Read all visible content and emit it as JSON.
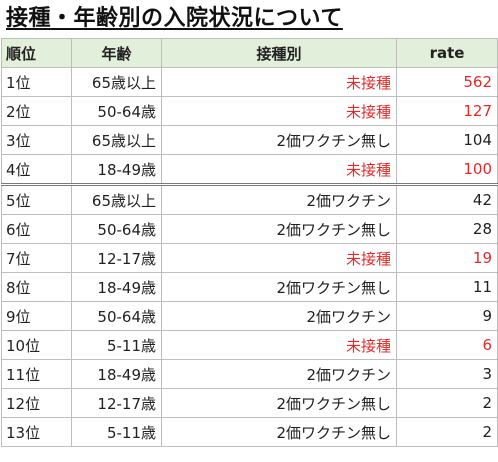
{
  "title": "接種・年齢別の入院状況について",
  "header": {
    "rank": "順位",
    "age": "年齢",
    "vaccination": "接種別",
    "rate": "rate"
  },
  "highlight_color": "#e02b2b",
  "header_bg_color": "#e2efda",
  "rows": [
    {
      "rank": "1位",
      "age": "65歳以上",
      "vaccination": "未接種",
      "rate": "562",
      "red": true
    },
    {
      "rank": "2位",
      "age": "50-64歳",
      "vaccination": "未接種",
      "rate": "127",
      "red": true
    },
    {
      "rank": "3位",
      "age": "65歳以上",
      "vaccination": "2価ワクチン無し",
      "rate": "104",
      "red": false
    },
    {
      "rank": "4位",
      "age": "18-49歳",
      "vaccination": "未接種",
      "rate": "100",
      "red": true
    },
    {
      "rank": "5位",
      "age": "65歳以上",
      "vaccination": "2価ワクチン",
      "rate": "42",
      "red": false
    },
    {
      "rank": "6位",
      "age": "50-64歳",
      "vaccination": "2価ワクチン無し",
      "rate": "28",
      "red": false
    },
    {
      "rank": "7位",
      "age": "12-17歳",
      "vaccination": "未接種",
      "rate": "19",
      "red": true
    },
    {
      "rank": "8位",
      "age": "18-49歳",
      "vaccination": "2価ワクチン無し",
      "rate": "11",
      "red": false
    },
    {
      "rank": "9位",
      "age": "50-64歳",
      "vaccination": "2価ワクチン",
      "rate": "9",
      "red": false
    },
    {
      "rank": "10位",
      "age": "5-11歳",
      "vaccination": "未接種",
      "rate": "6",
      "red": true
    },
    {
      "rank": "11位",
      "age": "18-49歳",
      "vaccination": "2価ワクチン",
      "rate": "3",
      "red": false
    },
    {
      "rank": "12位",
      "age": "12-17歳",
      "vaccination": "2価ワクチン無し",
      "rate": "2",
      "red": false
    },
    {
      "rank": "13位",
      "age": "5-11歳",
      "vaccination": "2価ワクチン無し",
      "rate": "2",
      "red": false
    }
  ]
}
